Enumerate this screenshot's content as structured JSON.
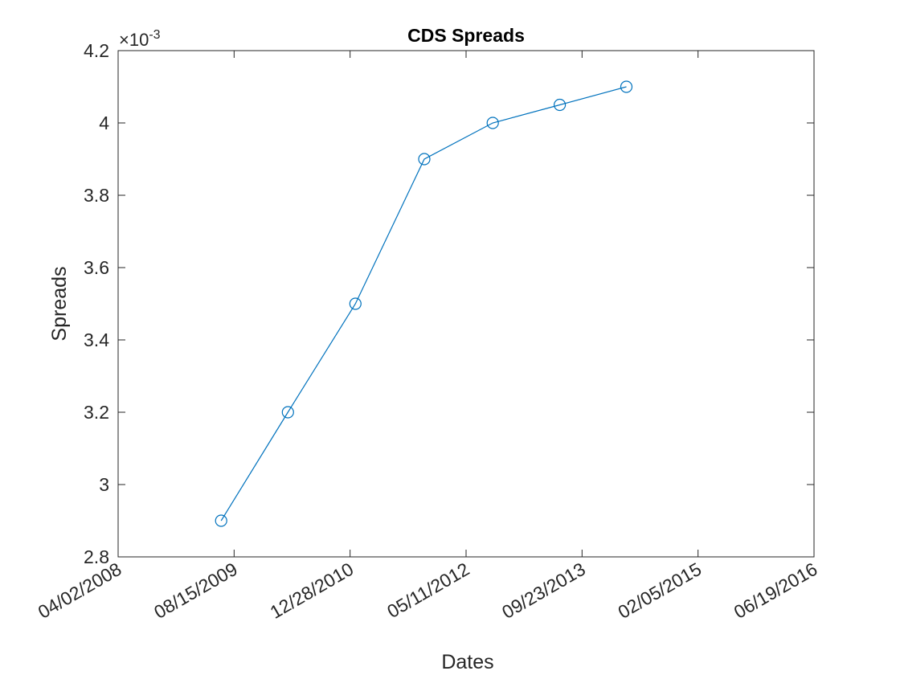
{
  "chart_data": {
    "type": "line",
    "title": "CDS Spreads",
    "xlabel": "Dates",
    "ylabel": "Spreads",
    "y_exponent": {
      "base": "×10",
      "power": "-3"
    },
    "x_axis": {
      "tick_labels": [
        "04/02/2008",
        "08/15/2009",
        "12/28/2010",
        "05/11/2012",
        "09/23/2013",
        "02/05/2015",
        "06/19/2016"
      ],
      "xlim": [
        "2008-04-02",
        "2016-06-19"
      ]
    },
    "y_axis": {
      "tick_labels": [
        "2.8",
        "3",
        "3.2",
        "3.4",
        "3.6",
        "3.8",
        "4",
        "4.2"
      ],
      "tick_values": [
        2.8,
        3.0,
        3.2,
        3.4,
        3.6,
        3.8,
        4.0,
        4.2
      ],
      "ylim": [
        2.8,
        4.2
      ]
    },
    "series": [
      {
        "x": [
          "2009-06-20",
          "2010-04-04",
          "2011-01-20",
          "2011-11-13",
          "2012-09-03",
          "2013-06-19",
          "2014-04-02"
        ],
        "values": [
          2.9,
          3.2,
          3.5,
          3.9,
          4.0,
          4.05,
          4.1
        ],
        "color": "#0072BD",
        "marker": "circle"
      }
    ],
    "grid": false,
    "legend": "none"
  }
}
